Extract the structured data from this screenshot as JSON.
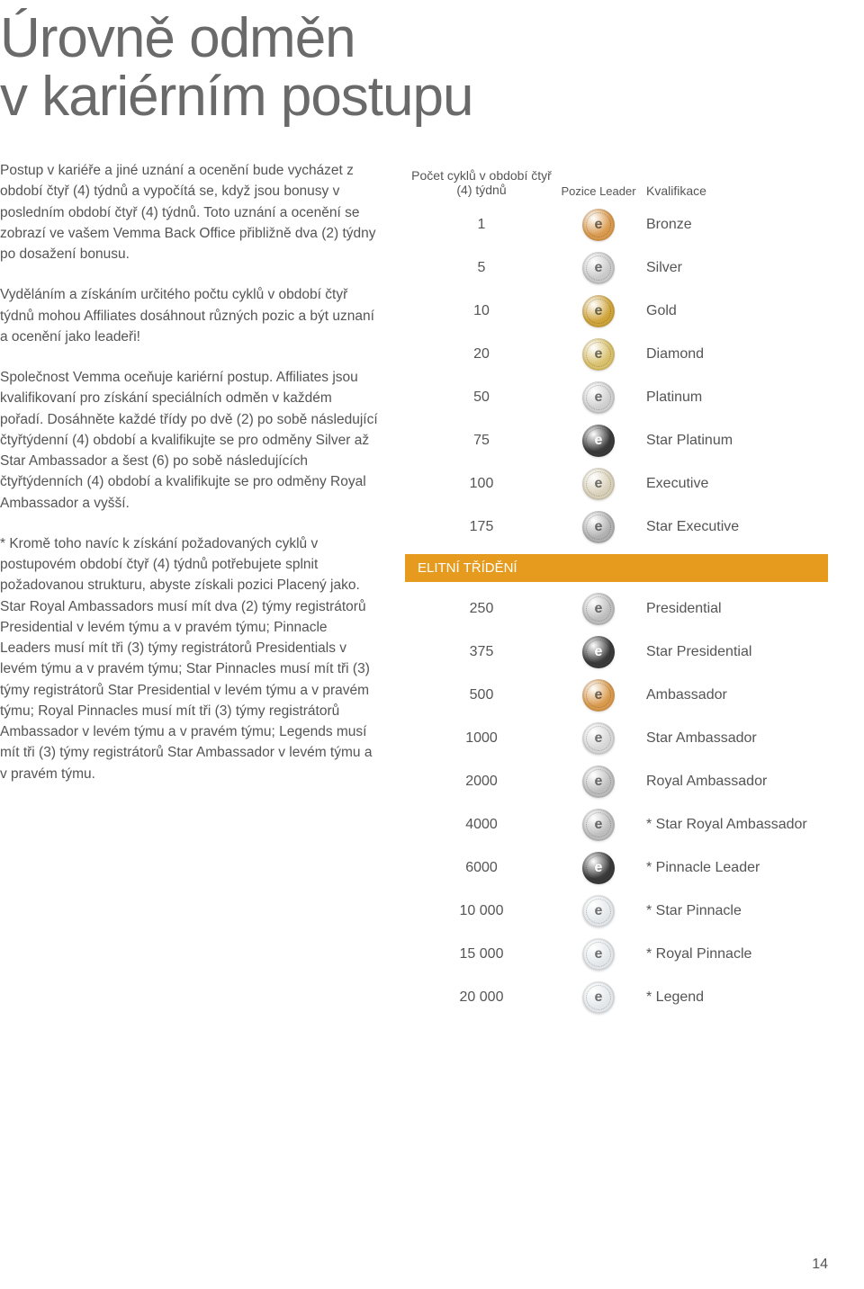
{
  "title_line1": "Úrovně odměn",
  "title_line2": "v kariérním postupu",
  "paragraphs": {
    "p1": "Postup v kariéře a jiné uznání a ocenění bude vycházet z období čtyř (4) týdnů a vypočítá se, když jsou bonusy v posledním období čtyř (4) týdnů. Toto uznání a ocenění se zobrazí ve vašem Vemma Back Office přibližně dva (2) týdny po dosažení bonusu.",
    "p2": "Vyděláním a získáním určitého počtu cyklů v období čtyř týdnů mohou Affiliates dosáhnout různých pozic a být uznaní a ocenění jako leadeři!",
    "p3": "Společnost Vemma oceňuje kariérní postup. Affiliates jsou kvalifikovaní pro získání speciálních odměn v každém pořadí. Dosáhněte každé třídy po dvě (2) po sobě následující čtyřtýdenní (4) období a kvalifikujte se pro odměny Silver až Star Ambassador a šest (6) po sobě následujících čtyřtýdenních (4) období a kvalifikujte se pro odměny Royal Ambassador a vyšší.",
    "p4": "* Kromě toho navíc k získání požadovaných cyklů v postupovém období čtyř (4) týdnů potřebujete splnit požadovanou strukturu, abyste získali pozici Placený jako. Star Royal Ambassadors musí mít dva (2) týmy registrátorů Presidential v levém týmu a v pravém týmu; Pinnacle Leaders musí mít tři (3) týmy registrátorů Presidentials v levém týmu a v pravém týmu; Star Pinnacles musí mít tři (3) týmy registrátorů Star Presidential v levém týmu a v pravém týmu; Royal Pinnacles musí mít tři (3) týmy registrátorů Ambassador v levém týmu a v pravém týmu; Legends musí mít tři (3) týmy registrátorů Star Ambassador v levém týmu a v pravém týmu."
  },
  "table": {
    "header_cycles": "Počet cyklů v období čtyř (4) týdnů",
    "header_icon": "Pozice Leader",
    "header_qual": "Kvalifikace",
    "divider_label": "ELITNÍ TŘÍDĚNÍ",
    "colors": {
      "bronze": "#d99a4e",
      "silver": "#c9c9c9",
      "gold": "#cfa43b",
      "diamond": "#d9c06c",
      "platinum": "#cfcfcf",
      "dark": "#3a3a3a",
      "cream": "#d8d0b8",
      "ornate": "#b0b0b0",
      "grey": "#bdbdbd",
      "lightgrey": "#d6d6d6",
      "glass": "#e3e7ea"
    },
    "rows_top": [
      {
        "cycles": "1",
        "qual": "Bronze",
        "color": "bronze",
        "glyph": "e"
      },
      {
        "cycles": "5",
        "qual": "Silver",
        "color": "silver",
        "glyph": "e"
      },
      {
        "cycles": "10",
        "qual": "Gold",
        "color": "gold",
        "glyph": "e"
      },
      {
        "cycles": "20",
        "qual": "Diamond",
        "color": "diamond",
        "glyph": "e"
      },
      {
        "cycles": "50",
        "qual": "Platinum",
        "color": "platinum",
        "glyph": "e"
      },
      {
        "cycles": "75",
        "qual": "Star Platinum",
        "color": "dark",
        "glyph": "e"
      },
      {
        "cycles": "100",
        "qual": "Executive",
        "color": "cream",
        "glyph": "e"
      },
      {
        "cycles": "175",
        "qual": "Star Executive",
        "color": "ornate",
        "glyph": "e"
      }
    ],
    "rows_bottom": [
      {
        "cycles": "250",
        "qual": "Presidential",
        "color": "grey",
        "glyph": "e"
      },
      {
        "cycles": "375",
        "qual": "Star Presidential",
        "color": "dark",
        "glyph": "e"
      },
      {
        "cycles": "500",
        "qual": "Ambassador",
        "color": "bronze",
        "glyph": "e"
      },
      {
        "cycles": "1000",
        "qual": "Star Ambassador",
        "color": "lightgrey",
        "glyph": "e"
      },
      {
        "cycles": "2000",
        "qual": "Royal Ambassador",
        "color": "grey",
        "glyph": "e"
      },
      {
        "cycles": "4000",
        "qual": "* Star Royal Ambassador",
        "color": "grey",
        "glyph": "e"
      },
      {
        "cycles": "6000",
        "qual": "* Pinnacle Leader",
        "color": "dark",
        "glyph": "e"
      },
      {
        "cycles": "10 000",
        "qual": "* Star Pinnacle",
        "color": "glass",
        "glyph": "e"
      },
      {
        "cycles": "15 000",
        "qual": "* Royal Pinnacle",
        "color": "glass",
        "glyph": "e"
      },
      {
        "cycles": "20 000",
        "qual": "* Legend",
        "color": "glass",
        "glyph": "e"
      }
    ]
  },
  "page_number": "14"
}
